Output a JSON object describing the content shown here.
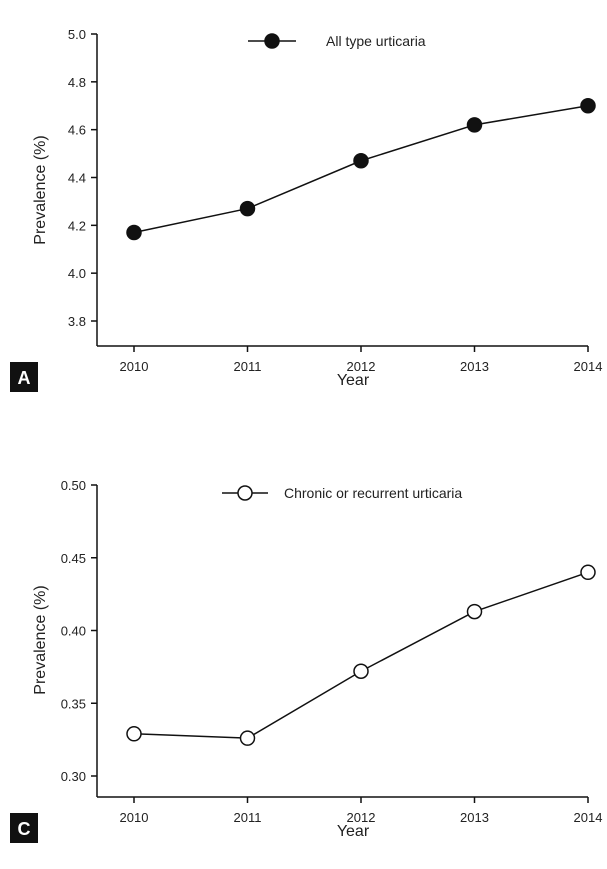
{
  "charts": {
    "A": {
      "panel_label": "A",
      "legend": "All type urticaria",
      "ylabel": "Prevalence (%)",
      "xlabel": "Year",
      "y_ticks": [
        "5.0",
        "4.8",
        "4.6",
        "4.4",
        "4.2",
        "4.0",
        "3.8"
      ],
      "x_ticks": [
        "2010",
        "2011",
        "2012",
        "2013",
        "2014"
      ]
    },
    "C": {
      "panel_label": "C",
      "legend": "Chronic or recurrent urticaria",
      "ylabel": "Prevalence (%)",
      "xlabel": "Year",
      "y_ticks": [
        "0.50",
        "0.45",
        "0.40",
        "0.35",
        "0.30"
      ],
      "x_ticks": [
        "2010",
        "2011",
        "2012",
        "2013",
        "2014"
      ]
    }
  },
  "chart_data": [
    {
      "type": "line",
      "panel": "A",
      "x": [
        2010,
        2011,
        2012,
        2013,
        2014
      ],
      "series": [
        {
          "name": "All type urticaria",
          "values": [
            4.17,
            4.27,
            4.47,
            4.62,
            4.7
          ],
          "marker": "filled",
          "color": "#111111"
        }
      ],
      "xlabel": "Year",
      "ylabel": "Prevalence (%)",
      "ylim": [
        3.8,
        5.0
      ],
      "xlim": [
        2010,
        2014
      ],
      "grid": false,
      "legend": "top-center"
    },
    {
      "type": "line",
      "panel": "C",
      "x": [
        2010,
        2011,
        2012,
        2013,
        2014
      ],
      "series": [
        {
          "name": "Chronic or recurrent urticaria",
          "values": [
            0.329,
            0.326,
            0.372,
            0.413,
            0.44
          ],
          "marker": "open",
          "color": "#111111"
        }
      ],
      "xlabel": "Year",
      "ylabel": "Prevalence (%)",
      "ylim": [
        0.3,
        0.5
      ],
      "xlim": [
        2010,
        2014
      ],
      "grid": false,
      "legend": "top-center"
    }
  ]
}
